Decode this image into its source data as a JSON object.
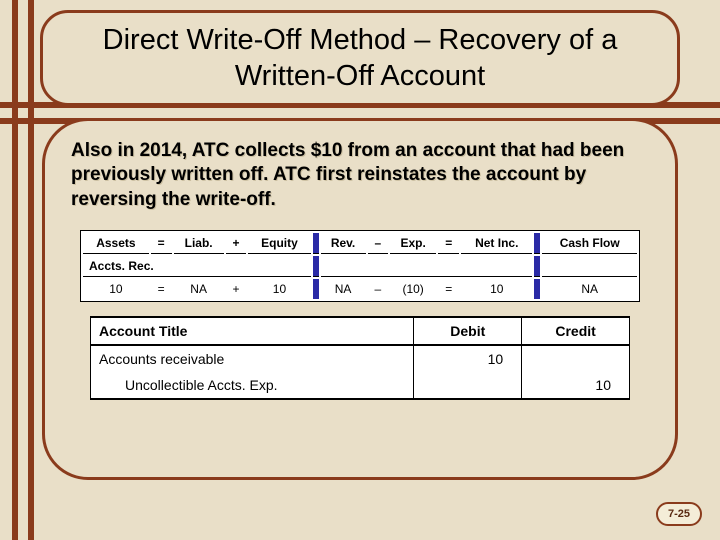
{
  "title": "Direct Write-Off Method – Recovery of a Written-Off Account",
  "body": "Also in 2014, ATC collects $10 from an account that had been previously written off.  ATC first reinstates the account by reversing the write-off.",
  "equation": {
    "headers": [
      "Assets",
      "=",
      "Liab.",
      "+",
      "Equity",
      "Rev.",
      "–",
      "Exp.",
      "=",
      "Net Inc.",
      "Cash Flow"
    ],
    "subhead": "Accts. Rec.",
    "values": [
      "10",
      "=",
      "NA",
      "+",
      "10",
      "NA",
      "–",
      "(10)",
      "=",
      "10",
      "NA"
    ],
    "sep_color": "#2a2aa6",
    "bg": "#ffffff"
  },
  "journal": {
    "columns": [
      "Account Title",
      "Debit",
      "Credit"
    ],
    "rows": [
      {
        "title": "Accounts receivable",
        "debit": "10",
        "credit": "",
        "indent": false
      },
      {
        "title": "Uncollectible Accts. Exp.",
        "debit": "",
        "credit": "10",
        "indent": true
      }
    ]
  },
  "page": "7-25",
  "colors": {
    "background": "#e9dfc8",
    "accent": "#8a3b1c"
  }
}
